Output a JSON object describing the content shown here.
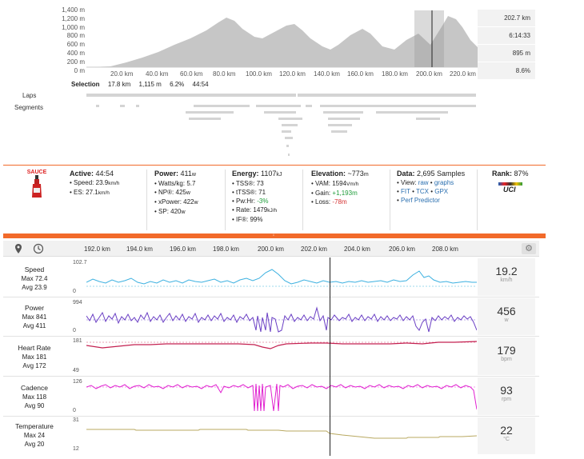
{
  "elevation": {
    "y_ticks": [
      "1,400 m",
      "1,200 m",
      "1,000 m",
      "800 m",
      "600 m",
      "400 m",
      "200 m",
      "0 m"
    ],
    "x_ticks": [
      "20.0 km",
      "40.0 km",
      "60.0 km",
      "80.0 km",
      "100.0 km",
      "120.0 km",
      "140.0 km",
      "160.0 km",
      "180.0 km",
      "200.0 km",
      "220.0 km"
    ],
    "summary": [
      "202.7 km",
      "6:14:33",
      "895 m",
      "8.6%"
    ]
  },
  "selection": {
    "label": "Selection",
    "distance": "17.8 km",
    "gain": "1,115 m",
    "grade": "6.2%",
    "time": "44:54"
  },
  "tracks": {
    "laps": "Laps",
    "segments": "Segments"
  },
  "brand": {
    "logo_text": "SAUCE"
  },
  "stats": {
    "active": {
      "title": "Active:",
      "value": "44:54",
      "speed_label": "• Speed:",
      "speed": "23.9",
      "speed_unit": "km/h",
      "es_label": "• ES:",
      "es": "27.1",
      "es_unit": "km/h"
    },
    "power": {
      "title": "Power:",
      "value": "411",
      "unit": "w",
      "wkg_label": "• Watts/kg:",
      "wkg": "5.7",
      "np_label": "• NP®:",
      "np": "425",
      "np_unit": "w",
      "xp_label": "• xPower:",
      "xp": "422",
      "xp_unit": "w",
      "sp_label": "• SP:",
      "sp": "420",
      "sp_unit": "w"
    },
    "energy": {
      "title": "Energy:",
      "value": "1107",
      "unit": "kJ",
      "tss_label": "• TSS®:",
      "tss": "73",
      "ttss_label": "• tTSS®:",
      "ttss": "71",
      "pwhr_label": "• Pw:Hr:",
      "pwhr": "-3%",
      "rate_label": "• Rate:",
      "rate": "1479",
      "rate_unit": "kJ/h",
      "if_label": "• IF®:",
      "if": "99%"
    },
    "elevation": {
      "title": "Elevation:",
      "value": "~773",
      "unit": "m",
      "vam_label": "• VAM:",
      "vam": "1594",
      "vam_unit": "Vm/h",
      "gain_label": "• Gain:",
      "gain": "+1,193m",
      "loss_label": "• Loss:",
      "loss": "-78m"
    },
    "data": {
      "title": "Data:",
      "value": "2,695 Samples",
      "view_label": "• View:",
      "raw": "raw",
      "graphs": "graphs",
      "fit": "FIT",
      "tcx": "TCX",
      "gpx": "GPX",
      "predictor": "Perf Predictor"
    },
    "rank": {
      "title": "Rank:",
      "value": "87%",
      "badge": "UCI"
    }
  },
  "timeline": {
    "ticks": [
      "192.0 km",
      "194.0 km",
      "196.0 km",
      "198.0 km",
      "200.0 km",
      "202.0 km",
      "204.0 km",
      "206.0 km",
      "208.0 km"
    ]
  },
  "rows": [
    {
      "name": "Speed",
      "max": "Max 72.4",
      "avg": "Avg 23.9",
      "top": "102.7",
      "bottom": "0",
      "value": "19.2",
      "unit": "km/h",
      "color": "#3bb0e0"
    },
    {
      "name": "Power",
      "max": "Max 841",
      "avg": "Avg 411",
      "top": "994",
      "bottom": "0",
      "value": "456",
      "unit": "w",
      "color": "#6a3fc4"
    },
    {
      "name": "Heart Rate",
      "max": "Max 181",
      "avg": "Avg 172",
      "top": "181",
      "bottom": "49",
      "value": "179",
      "unit": "bpm",
      "color": "#c42050"
    },
    {
      "name": "Cadence",
      "max": "Max 118",
      "avg": "Avg 90",
      "top": "126",
      "bottom": "0",
      "value": "93",
      "unit": "rpm",
      "color": "#e020d0"
    },
    {
      "name": "Temperature",
      "max": "Max 24",
      "avg": "Avg 20",
      "top": "31",
      "bottom": "12",
      "value": "22",
      "unit": "°C",
      "color": "#b8a860"
    }
  ],
  "colors": {
    "accent": "#f26a2a"
  }
}
